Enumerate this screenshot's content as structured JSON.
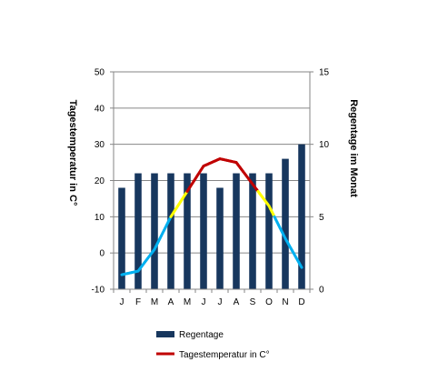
{
  "chart_data": {
    "type": "bar+line",
    "categories": [
      "J",
      "F",
      "M",
      "A",
      "M",
      "J",
      "J",
      "A",
      "S",
      "O",
      "N",
      "D"
    ],
    "series": [
      {
        "name": "Regentage",
        "type": "bar",
        "axis": "right",
        "color": "#17375e",
        "values": [
          7,
          8,
          8,
          8,
          8,
          8,
          7,
          8,
          8,
          8,
          9,
          10
        ]
      },
      {
        "name": "Tagestemperatur in C°",
        "type": "line",
        "axis": "left",
        "color": "#c00000",
        "values": [
          -6,
          -5,
          1,
          10,
          17,
          24,
          26,
          25,
          19,
          13,
          4,
          -4
        ]
      }
    ],
    "line_color_bands": [
      {
        "range": "below 10",
        "color": "#00b0f0"
      },
      {
        "range": "10 to 17",
        "color": "#ffff00"
      },
      {
        "range": "above 17",
        "color": "#c00000"
      }
    ],
    "ylabel": "Tagestemperatur in C°",
    "ylabel_right": "Regentage im Monat",
    "ylim": [
      -10,
      50
    ],
    "ylim_right": [
      0,
      15
    ],
    "yticks": [
      "-10",
      "0",
      "10",
      "20",
      "30",
      "40",
      "50"
    ],
    "yticks_right": [
      "0",
      "5",
      "10",
      "15"
    ],
    "grid": true,
    "legend_position": "bottom"
  }
}
